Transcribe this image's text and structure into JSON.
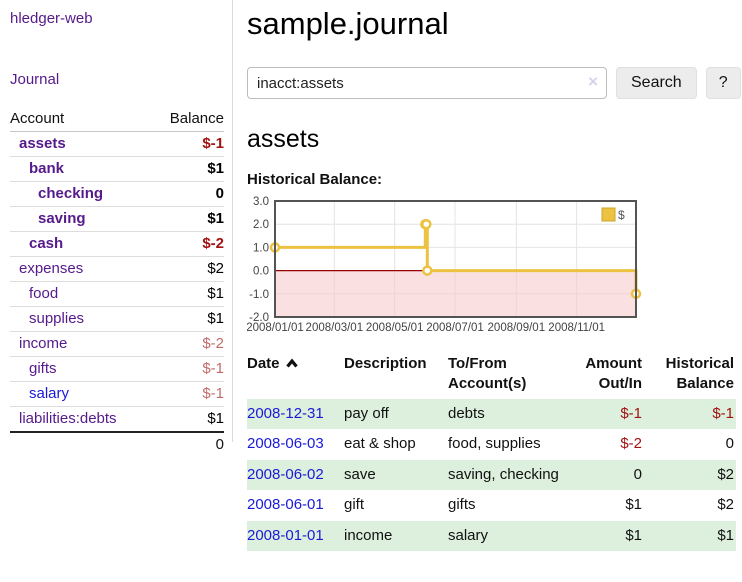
{
  "app": {
    "brand": "hledger-web",
    "nav_journal": "Journal"
  },
  "sidebar": {
    "accounts_header": {
      "account": "Account",
      "balance": "Balance"
    },
    "rows": [
      {
        "name": "assets",
        "indent": 1,
        "bold": true,
        "balance": "$-1"
      },
      {
        "name": "bank",
        "indent": 2,
        "bold": true,
        "balance": "$1"
      },
      {
        "name": "checking",
        "indent": 3,
        "bold": true,
        "balance": "0"
      },
      {
        "name": "saving",
        "indent": 3,
        "bold": true,
        "balance": "$1"
      },
      {
        "name": "cash",
        "indent": 2,
        "bold": true,
        "balance": "$-2"
      },
      {
        "name": "expenses",
        "indent": 1,
        "bold": false,
        "balance": "$2"
      },
      {
        "name": "food",
        "indent": 2,
        "bold": false,
        "balance": "$1"
      },
      {
        "name": "supplies",
        "indent": 2,
        "bold": false,
        "balance": "$1"
      },
      {
        "name": "income",
        "indent": 1,
        "bold": false,
        "balance": "$-2"
      },
      {
        "name": "gifts",
        "indent": 2,
        "bold": false,
        "balance": "$-1"
      },
      {
        "name": "salary",
        "indent": 2,
        "bold": false,
        "balance": "$-1"
      },
      {
        "name": "liabilities:debts",
        "indent": 1,
        "bold": false,
        "balance": "$1"
      }
    ],
    "total": "0"
  },
  "header": {
    "title": "sample.journal"
  },
  "search": {
    "value": "inacct:assets",
    "clear_icon": "×",
    "button": "Search",
    "help_button": "?"
  },
  "account_page": {
    "title": "assets",
    "chart_label": "Historical Balance:"
  },
  "chart_data": {
    "type": "line",
    "title": "Historical Balance:",
    "series": [
      {
        "name": "$",
        "color": "#edc240",
        "points": [
          [
            "2008-01-01",
            1
          ],
          [
            "2008-06-01",
            2
          ],
          [
            "2008-06-02",
            2
          ],
          [
            "2008-06-03",
            0
          ],
          [
            "2008-12-31",
            -1
          ]
        ]
      }
    ],
    "line_style": "step",
    "xlim": [
      "2008/01/01",
      "2008/12/31"
    ],
    "ylim": [
      -2,
      3
    ],
    "x_ticks": [
      "2008/01/01",
      "2008/03/01",
      "2008/05/01",
      "2008/07/01",
      "2008/09/01",
      "2008/11/01"
    ],
    "y_ticks": [
      3,
      2,
      1,
      0,
      -1,
      -2
    ],
    "grid": true,
    "legend_position": "top-right",
    "negative_fill": "#f6c7c7",
    "zero_line_color": "#990000",
    "border_color": "#545454"
  },
  "register": {
    "columns": [
      "Date",
      "Description",
      "To/From Account(s)",
      "Amount Out/In",
      "Historical Balance"
    ],
    "sort": "date-ascending",
    "rows": [
      {
        "date": "2008-12-31",
        "description": "pay off",
        "accounts": "debts",
        "amount": "$-1",
        "amount_neg": true,
        "balance": "$-1",
        "balance_neg": true
      },
      {
        "date": "2008-06-03",
        "description": "eat & shop",
        "accounts": "food, supplies",
        "amount": "$-2",
        "amount_neg": true,
        "balance": "0",
        "balance_neg": false
      },
      {
        "date": "2008-06-02",
        "description": "save",
        "accounts": "saving, checking",
        "amount": "0",
        "amount_neg": false,
        "balance": "$2",
        "balance_neg": false
      },
      {
        "date": "2008-06-01",
        "description": "gift",
        "accounts": "gifts",
        "amount": "$1",
        "amount_neg": false,
        "balance": "$2",
        "balance_neg": false
      },
      {
        "date": "2008-01-01",
        "description": "income",
        "accounts": "salary",
        "amount": "$1",
        "amount_neg": false,
        "balance": "$1",
        "balance_neg": false
      }
    ]
  }
}
